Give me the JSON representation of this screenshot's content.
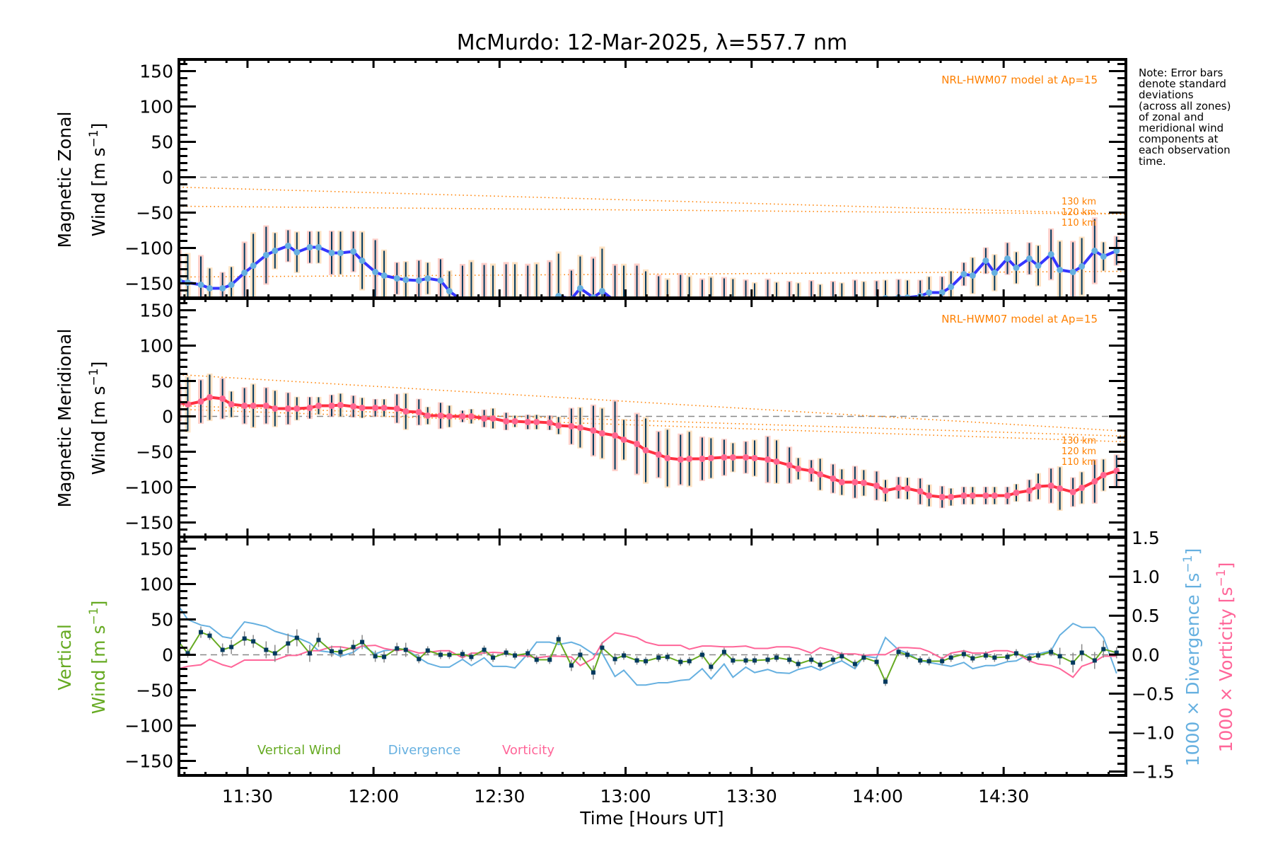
{
  "title": "McMurdo: 12-Mar-2025, λ=557.7 nm",
  "note_lines": [
    "Note: Error bars",
    "denote standard",
    "deviations",
    "(across all zones)",
    "of zonal and",
    "meridional wind",
    "components at",
    "each observation",
    "time."
  ],
  "colors": {
    "zonal": "#3535ff",
    "zonal_marker": "#66b0e0",
    "meridional": "#ff3040",
    "meridional_marker": "#ff6690",
    "errbar": "#00395e",
    "vertical": "#66aa22",
    "vertical_err": "#888888",
    "divergence": "#66b0e0",
    "vorticity": "#ff6699",
    "model": "#ff8000",
    "zero": "#888888"
  },
  "chart_data": {
    "type": "line",
    "title": "McMurdo: 12-Mar-2025, λ=557.7 nm",
    "xlabel": "Time [Hours UT]",
    "xlim": [
      11.228,
      14.985
    ],
    "x_ticks": [
      {
        "value": 11.5,
        "label": "11:30"
      },
      {
        "value": 12.0,
        "label": "12:00"
      },
      {
        "value": 12.5,
        "label": "12:30"
      },
      {
        "value": 13.0,
        "label": "13:00"
      },
      {
        "value": 13.5,
        "label": "13:30"
      },
      {
        "value": 14.0,
        "label": "14:00"
      },
      {
        "value": 14.5,
        "label": "14:30"
      }
    ],
    "y_ticks": [
      {
        "value": 150,
        "label": "150"
      },
      {
        "value": 100,
        "label": "100"
      },
      {
        "value": 50,
        "label": "50"
      },
      {
        "value": 0,
        "label": "0"
      },
      {
        "value": -50,
        "label": "−50"
      },
      {
        "value": -100,
        "label": "−100"
      },
      {
        "value": -150,
        "label": "−150"
      }
    ],
    "ylim": [
      -170.5,
      166.5
    ],
    "time": [
      11.228,
      11.263,
      11.315,
      11.35,
      11.401,
      11.436,
      11.488,
      11.523,
      11.574,
      11.609,
      11.661,
      11.696,
      11.747,
      11.782,
      11.834,
      11.869,
      11.92,
      11.955,
      12.007,
      12.042,
      12.093,
      12.128,
      12.18,
      12.215,
      12.266,
      12.301,
      12.353,
      12.388,
      12.439,
      12.474,
      12.526,
      12.561,
      12.612,
      12.647,
      12.699,
      12.734,
      12.785,
      12.82,
      12.872,
      12.907,
      12.958,
      12.993,
      13.045,
      13.08,
      13.131,
      13.166,
      13.218,
      13.253,
      13.304,
      13.339,
      13.391,
      13.426,
      13.477,
      13.512,
      13.564,
      13.599,
      13.65,
      13.685,
      13.737,
      13.772,
      13.823,
      13.858,
      13.91,
      13.945,
      13.996,
      14.031,
      14.083,
      14.118,
      14.169,
      14.204,
      14.256,
      14.291,
      14.342,
      14.377,
      14.429,
      14.464,
      14.515,
      14.55,
      14.602,
      14.637,
      14.688,
      14.723,
      14.775,
      14.81,
      14.861,
      14.896,
      14.948
    ],
    "panels": [
      {
        "ylabel_line1": "Magnetic Zonal",
        "ylabel_line2": {
          "main": "Wind [m s",
          "sup": "−1",
          "close": "]"
        },
        "model_label": "NRL-HWM07 model at Ap=15",
        "series": {
          "name": "Magnetic Zonal Wind",
          "values": [
            -146,
            -149,
            -152,
            -157,
            -157,
            -152,
            -135,
            -125,
            -110,
            -104,
            -97,
            -106,
            -99,
            -99,
            -107,
            -107,
            -105,
            -118,
            -134,
            -139,
            -143,
            -145,
            -146,
            -143,
            -146,
            -161,
            -175,
            -180,
            -182,
            -185,
            -185,
            -183,
            -180,
            -178,
            -175,
            -168,
            -172,
            -157,
            -170,
            -161,
            -175,
            -180,
            -185,
            -188,
            -190,
            -190,
            -188,
            -186,
            -185,
            -184,
            -183,
            -182,
            -181,
            -180,
            -180,
            -179,
            -178,
            -178,
            -177,
            -177,
            -176,
            -175,
            -174,
            -173,
            -172,
            -171,
            -170,
            -170,
            -168,
            -163,
            -163,
            -155,
            -137,
            -139,
            -118,
            -135,
            -115,
            -128,
            -115,
            -125,
            -109,
            -131,
            -134,
            -126,
            -104,
            -112,
            -104
          ],
          "errors": [
            42,
            40,
            40,
            28,
            22,
            25,
            42,
            45,
            40,
            25,
            22,
            28,
            22,
            22,
            30,
            30,
            28,
            40,
            45,
            35,
            22,
            25,
            28,
            22,
            30,
            28,
            50,
            60,
            58,
            60,
            62,
            60,
            55,
            55,
            55,
            60,
            40,
            45,
            55,
            60,
            50,
            55,
            60,
            55,
            50,
            45,
            50,
            45,
            40,
            42,
            40,
            38,
            35,
            30,
            35,
            30,
            30,
            28,
            30,
            25,
            28,
            25,
            28,
            25,
            25,
            25,
            25,
            24,
            22,
            22,
            22,
            22,
            16,
            25,
            18,
            25,
            22,
            22,
            22,
            28,
            35,
            40,
            42,
            40,
            45,
            20,
            20
          ]
        },
        "model": [
          {
            "name": "130 km",
            "start": -14,
            "end": -52
          },
          {
            "name": "120 km",
            "start": -41,
            "end": -52
          },
          {
            "name": "110 km",
            "start": -141,
            "end": -133
          }
        ]
      },
      {
        "ylabel_line1": "Magnetic Meridional",
        "ylabel_line2": {
          "main": "Wind [m s",
          "sup": "−1",
          "close": "]"
        },
        "model_label": "NRL-HWM07 model at Ap=15",
        "series": {
          "name": "Magnetic Meridional Wind",
          "values": [
            19,
            17,
            21,
            27,
            25,
            17,
            15,
            15,
            15,
            11,
            11,
            11,
            12,
            15,
            15,
            16,
            14,
            12,
            12,
            12,
            11,
            7,
            6,
            1,
            1,
            0,
            0,
            0,
            -3,
            -3,
            -7,
            -7,
            -8,
            -8,
            -9,
            -13,
            -14,
            -16,
            -20,
            -24,
            -27,
            -33,
            -39,
            -48,
            -54,
            -59,
            -61,
            -60,
            -60,
            -59,
            -58,
            -58,
            -58,
            -59,
            -61,
            -64,
            -69,
            -74,
            -77,
            -82,
            -88,
            -93,
            -93,
            -94,
            -98,
            -105,
            -101,
            -102,
            -106,
            -112,
            -114,
            -114,
            -112,
            -112,
            -112,
            -112,
            -112,
            -108,
            -105,
            -99,
            -98,
            -102,
            -107,
            -101,
            -92,
            -83,
            -77
          ],
          "errors": [
            25,
            38,
            30,
            32,
            28,
            18,
            25,
            30,
            25,
            25,
            22,
            16,
            15,
            12,
            15,
            16,
            15,
            14,
            12,
            12,
            20,
            25,
            18,
            12,
            18,
            15,
            8,
            10,
            12,
            14,
            12,
            8,
            10,
            10,
            10,
            12,
            25,
            28,
            35,
            35,
            48,
            28,
            42,
            45,
            32,
            40,
            35,
            38,
            30,
            28,
            25,
            20,
            22,
            25,
            32,
            30,
            25,
            15,
            15,
            22,
            20,
            18,
            22,
            18,
            20,
            15,
            15,
            15,
            18,
            15,
            15,
            12,
            12,
            12,
            12,
            12,
            12,
            12,
            15,
            18,
            24,
            30,
            20,
            22,
            30,
            22,
            22
          ]
        },
        "model": [
          {
            "name": "130 km",
            "start": 59,
            "end": -21
          },
          {
            "name": "120 km",
            "start": 15,
            "end": -28
          },
          {
            "name": "110 km",
            "start": 10,
            "end": -36
          }
        ]
      },
      {
        "ylabel_line1": "Vertical",
        "ylabel_line2": {
          "main": "Wind [m s",
          "sup": "−1",
          "close": "]"
        },
        "right_ylim": [
          -1.55,
          1.51
        ],
        "right_ticks": [
          {
            "value": 1.5,
            "label": "1.5"
          },
          {
            "value": 1.0,
            "label": "1.0"
          },
          {
            "value": 0.5,
            "label": "0.5"
          },
          {
            "value": 0.0,
            "label": "0.0"
          },
          {
            "value": -0.5,
            "label": "−0.5"
          },
          {
            "value": -1.0,
            "label": "−1.0"
          },
          {
            "value": -1.5,
            "label": "−1.5"
          }
        ],
        "right_label_divergence": {
          "main": "1000 × Divergence [s",
          "sup": "−1",
          "close": "]"
        },
        "right_label_vorticity": {
          "main": "1000 × Vorticity [s",
          "sup": "−1",
          "close": "]"
        },
        "legend": [
          "Vertical Wind",
          "Divergence",
          "Vorticity"
        ],
        "series": [
          {
            "name": "Vertical Wind",
            "axis": "left",
            "values": [
              18,
              2,
              32,
              27,
              7,
              11,
              23,
              19,
              7,
              2,
              16,
              24,
              2,
              21,
              5,
              4,
              11,
              18,
              -2,
              -3,
              9,
              7,
              -6,
              6,
              0,
              0,
              1,
              -3,
              7,
              -4,
              3,
              -1,
              2,
              -7,
              -7,
              22,
              -15,
              0,
              -25,
              10,
              -6,
              -1,
              -8,
              -9,
              -4,
              -3,
              -10,
              -9,
              0,
              -17,
              4,
              -8,
              -8,
              -8,
              -7,
              -4,
              -7,
              -13,
              -7,
              -14,
              -7,
              -2,
              -13,
              -4,
              -10,
              -38,
              4,
              0,
              -8,
              -9,
              -9,
              -4,
              1,
              -5,
              -1,
              -4,
              -3,
              2,
              -5,
              -1,
              4,
              -2,
              -11,
              3,
              -8,
              8,
              3
            ],
            "errors": [
              10,
              6,
              8,
              6,
              9,
              10,
              10,
              9,
              12,
              12,
              14,
              12,
              12,
              10,
              8,
              8,
              10,
              10,
              8,
              8,
              8,
              10,
              6,
              6,
              6,
              6,
              6,
              6,
              6,
              6,
              6,
              6,
              6,
              6,
              6,
              6,
              8,
              8,
              10,
              8,
              8,
              6,
              6,
              6,
              6,
              6,
              6,
              6,
              6,
              6,
              6,
              6,
              6,
              6,
              6,
              6,
              6,
              6,
              6,
              6,
              6,
              6,
              6,
              6,
              6,
              6,
              6,
              6,
              6,
              6,
              6,
              6,
              6,
              6,
              6,
              6,
              6,
              6,
              6,
              6,
              6,
              12,
              14,
              12,
              12,
              12,
              8
            ]
          },
          {
            "name": "Divergence",
            "axis": "right",
            "values": [
              0.62,
              0.45,
              0.38,
              0.36,
              0.23,
              0.21,
              0.42,
              0.4,
              0.36,
              0.3,
              0.25,
              0.22,
              0.15,
              0.05,
              0.03,
              -0.02,
              0.03,
              0.12,
              0.01,
              0.05,
              0.07,
              0.07,
              -0.04,
              -0.11,
              -0.16,
              -0.16,
              -0.06,
              -0.14,
              -0.04,
              -0.15,
              -0.15,
              -0.17,
              0.01,
              0.16,
              0.16,
              0.13,
              0.16,
              0.12,
              0.01,
              0.02,
              -0.28,
              -0.2,
              -0.39,
              -0.39,
              -0.36,
              -0.36,
              -0.33,
              -0.32,
              -0.18,
              -0.31,
              -0.12,
              -0.29,
              -0.16,
              -0.23,
              -0.19,
              -0.23,
              -0.24,
              -0.19,
              -0.15,
              -0.2,
              -0.12,
              -0.08,
              -0.18,
              -0.02,
              -0.04,
              0.22,
              0.06,
              0.02,
              -0.08,
              -0.1,
              -0.13,
              -0.15,
              -0.1,
              -0.18,
              -0.14,
              -0.14,
              -0.09,
              -0.08,
              0.01,
              0.01,
              0.05,
              0.25,
              0.4,
              0.35,
              0.35,
              0.22,
              -0.24
            ]
          },
          {
            "name": "Vorticity",
            "axis": "right",
            "values": [
              -0.18,
              -0.15,
              -0.13,
              -0.06,
              -0.13,
              -0.16,
              -0.07,
              -0.07,
              -0.07,
              -0.07,
              -0.01,
              -0.01,
              0.05,
              0.05,
              0.1,
              0.1,
              0.07,
              0.11,
              0.12,
              0.08,
              0.05,
              0.07,
              0.02,
              0.03,
              0.05,
              0.05,
              -0.04,
              0.02,
              0.02,
              0.03,
              0.02,
              -0.01,
              -0.02,
              -0.04,
              -0.02,
              -0.02,
              -0.03,
              -0.14,
              -0.05,
              0.15,
              0.28,
              0.26,
              0.22,
              0.16,
              0.12,
              0.12,
              0.12,
              0.07,
              0.11,
              0.11,
              0.1,
              0.1,
              0.11,
              0.08,
              0.08,
              0.1,
              0.1,
              0.08,
              0.02,
              0.09,
              0.05,
              0.01,
              0.01,
              -0.01,
              0,
              0,
              0.09,
              0.09,
              0.08,
              0.04,
              -0.05,
              0.02,
              0.05,
              0.02,
              0.02,
              0.05,
              0.05,
              0.02,
              -0.08,
              -0.12,
              -0.14,
              -0.18,
              -0.29,
              -0.15,
              -0.09,
              -0.02,
              -0.02
            ]
          }
        ]
      }
    ]
  }
}
